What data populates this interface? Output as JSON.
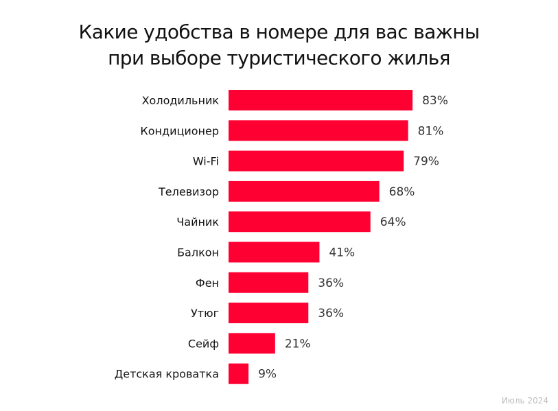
{
  "title_line1": "Какие удобства в номере для вас важны",
  "title_line2": "при выборе туристического жилья",
  "footnote": "Июль 2024",
  "colors": {
    "bar": "#ff0033",
    "label": "#111111",
    "value": "#333333"
  },
  "chart_data": {
    "type": "bar",
    "orientation": "horizontal",
    "categories": [
      "Холодильник",
      "Кондиционер",
      "Wi-Fi",
      "Телевизор",
      "Чайник",
      "Балкон",
      "Фен",
      "Утюг",
      "Сейф",
      "Детская кроватка"
    ],
    "values": [
      83,
      81,
      79,
      68,
      64,
      41,
      36,
      36,
      21,
      9
    ],
    "value_labels": [
      "83%",
      "81%",
      "79%",
      "68%",
      "64%",
      "41%",
      "36%",
      "36%",
      "21%",
      "9%"
    ],
    "unit": "%",
    "grid": false,
    "legend": "none"
  }
}
